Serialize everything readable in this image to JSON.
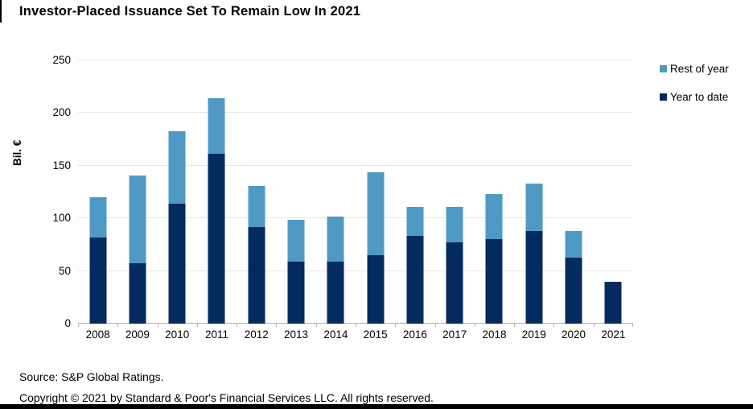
{
  "page": {
    "source_line": "Source: S&P Global Ratings.",
    "copyright_line": "Copyright © 2021 by Standard & Poor's Financial Services LLC. All rights reserved."
  },
  "colors": {
    "rest_of_year": "#4f9ac4",
    "year_to_date": "#042b60",
    "gridline": "#e7e7e7",
    "axis": "#b3b3b3"
  },
  "legend": {
    "items": [
      {
        "label": "Rest of year",
        "color": "#4f9ac4"
      },
      {
        "label": "Year to date",
        "color": "#042b60"
      }
    ]
  },
  "chart_data": {
    "type": "bar",
    "stacked": true,
    "title": "Investor-Placed Issuance Set To Remain Low In 2021",
    "xlabel": "",
    "ylabel": "Bil. €",
    "ylim": [
      0,
      250
    ],
    "yticks": [
      0,
      50,
      100,
      150,
      200,
      250
    ],
    "grid": true,
    "legend_position": "top-right",
    "categories": [
      "2008",
      "2009",
      "2010",
      "2011",
      "2012",
      "2013",
      "2014",
      "2015",
      "2016",
      "2017",
      "2018",
      "2019",
      "2020",
      "2021"
    ],
    "series": [
      {
        "name": "Year to date",
        "color": "#042b60",
        "values": [
          82,
          57,
          114,
          161,
          92,
          59,
          59,
          65,
          83,
          77,
          80,
          88,
          63,
          40
        ]
      },
      {
        "name": "Rest of year",
        "color": "#4f9ac4",
        "values": [
          38,
          84,
          69,
          53,
          39,
          40,
          43,
          79,
          28,
          34,
          43,
          45,
          25,
          0
        ]
      }
    ]
  }
}
